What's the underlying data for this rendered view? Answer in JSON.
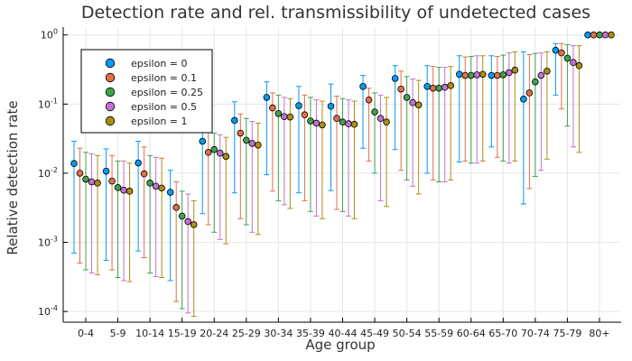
{
  "chart_data": {
    "type": "scatter",
    "title": "Detection rate and rel. transmissibility of undetected cases",
    "xlabel": "Age group",
    "ylabel": "Relative detection rate",
    "y_scale": "log",
    "ylim": [
      7e-05,
      1.3
    ],
    "y_ticks": [
      0.0001,
      0.001,
      0.01,
      0.1,
      1
    ],
    "y_tick_labels": [
      {
        "base": "10",
        "exp": "-4"
      },
      {
        "base": "10",
        "exp": "-3"
      },
      {
        "base": "10",
        "exp": "-2"
      },
      {
        "base": "10",
        "exp": "-1"
      },
      {
        "base": "10",
        "exp": "0"
      }
    ],
    "grid": true,
    "legend_position": "top-left",
    "categories": [
      "0-4",
      "5-9",
      "10-14",
      "15-19",
      "20-24",
      "25-29",
      "30-34",
      "35-39",
      "40-44",
      "45-49",
      "50-54",
      "55-59",
      "60-64",
      "65-70",
      "70-74",
      "75-79",
      "80+"
    ],
    "series": [
      {
        "name": "epsilon = 0",
        "color": "#009AFA",
        "values": [
          0.0138,
          0.0107,
          0.0141,
          0.0053,
          0.029,
          0.058,
          0.125,
          0.095,
          0.093,
          0.18,
          0.235,
          0.18,
          0.27,
          0.26,
          0.118,
          0.6,
          1.0
        ],
        "lower": [
          0.0007,
          0.00055,
          0.00075,
          0.00028,
          0.0026,
          0.0052,
          0.0095,
          0.0052,
          0.0056,
          0.023,
          0.022,
          0.01,
          0.0145,
          0.024,
          0.0036,
          0.135,
          1.0
        ],
        "upper": [
          0.029,
          0.0225,
          0.029,
          0.011,
          0.044,
          0.108,
          0.21,
          0.18,
          0.195,
          0.26,
          0.36,
          0.36,
          0.5,
          0.5,
          0.57,
          0.75,
          1.0
        ]
      },
      {
        "name": "epsilon = 0.1",
        "color": "#E26F46",
        "values": [
          0.01,
          0.0077,
          0.0098,
          0.0032,
          0.02,
          0.038,
          0.088,
          0.07,
          0.062,
          0.115,
          0.165,
          0.17,
          0.26,
          0.26,
          0.145,
          0.55,
          1.0
        ],
        "lower": [
          0.0005,
          0.0004,
          0.0006,
          0.00014,
          0.0018,
          0.0022,
          0.0055,
          0.004,
          0.003,
          0.015,
          0.011,
          0.008,
          0.015,
          0.017,
          0.006,
          0.085,
          1.0
        ],
        "upper": [
          0.023,
          0.018,
          0.024,
          0.0075,
          0.042,
          0.072,
          0.145,
          0.135,
          0.13,
          0.17,
          0.3,
          0.35,
          0.48,
          0.49,
          0.52,
          0.75,
          1.0
        ]
      },
      {
        "name": "epsilon = 0.25",
        "color": "#3DA44D",
        "values": [
          0.0082,
          0.0062,
          0.0072,
          0.0024,
          0.022,
          0.03,
          0.073,
          0.057,
          0.055,
          0.077,
          0.125,
          0.17,
          0.26,
          0.265,
          0.21,
          0.46,
          1.0
        ],
        "lower": [
          0.0004,
          0.00031,
          0.00036,
          0.00011,
          0.0014,
          0.0018,
          0.004,
          0.0028,
          0.0028,
          0.01,
          0.008,
          0.0075,
          0.014,
          0.015,
          0.009,
          0.048,
          1.0
        ],
        "upper": [
          0.02,
          0.015,
          0.018,
          0.0055,
          0.038,
          0.062,
          0.135,
          0.125,
          0.12,
          0.145,
          0.25,
          0.34,
          0.49,
          0.51,
          0.54,
          0.72,
          1.0
        ]
      },
      {
        "name": "epsilon = 0.5",
        "color": "#C271D2",
        "values": [
          0.0075,
          0.0057,
          0.0065,
          0.002,
          0.0195,
          0.027,
          0.066,
          0.053,
          0.052,
          0.062,
          0.105,
          0.175,
          0.265,
          0.285,
          0.26,
          0.4,
          1.0
        ],
        "lower": [
          0.00036,
          0.00028,
          0.00032,
          9.5e-05,
          0.0011,
          0.0014,
          0.0035,
          0.0024,
          0.0024,
          0.004,
          0.0065,
          0.0075,
          0.014,
          0.014,
          0.011,
          0.024,
          1.0
        ],
        "upper": [
          0.019,
          0.015,
          0.017,
          0.005,
          0.036,
          0.056,
          0.125,
          0.115,
          0.115,
          0.135,
          0.23,
          0.34,
          0.5,
          0.55,
          0.55,
          0.7,
          1.0
        ]
      },
      {
        "name": "epsilon = 1",
        "color": "#AC8D18",
        "values": [
          0.0072,
          0.0055,
          0.0061,
          0.0018,
          0.0175,
          0.0255,
          0.065,
          0.05,
          0.051,
          0.055,
          0.097,
          0.185,
          0.27,
          0.31,
          0.3,
          0.36,
          1.0
        ],
        "lower": [
          0.00034,
          0.00027,
          0.00031,
          8.5e-05,
          0.00095,
          0.0013,
          0.0031,
          0.0022,
          0.0022,
          0.0033,
          0.005,
          0.008,
          0.015,
          0.015,
          0.016,
          0.02,
          1.0
        ],
        "upper": [
          0.018,
          0.014,
          0.0165,
          0.004,
          0.033,
          0.053,
          0.12,
          0.11,
          0.11,
          0.125,
          0.22,
          0.35,
          0.5,
          0.57,
          0.57,
          0.7,
          1.0
        ]
      }
    ]
  }
}
